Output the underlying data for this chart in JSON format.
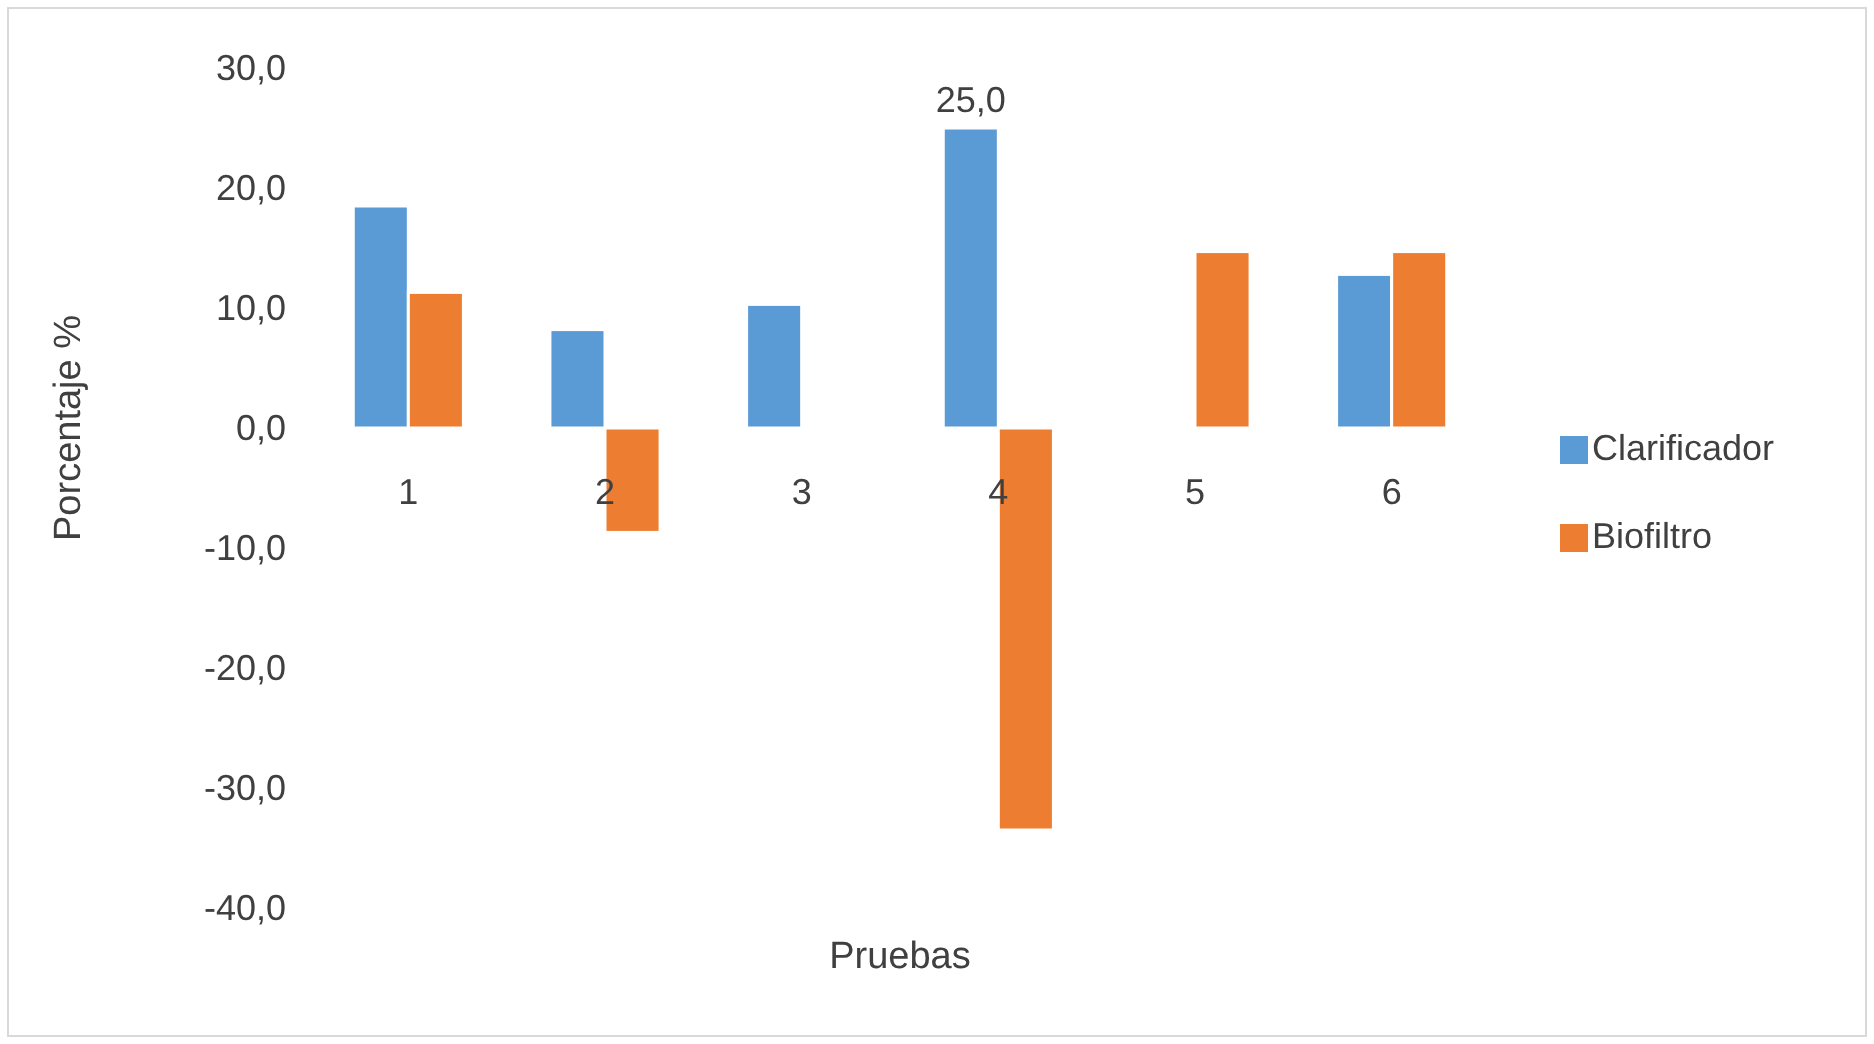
{
  "chart_data": {
    "type": "bar",
    "xlabel": "Pruebas",
    "ylabel": "Porcentaje %",
    "categories": [
      "1",
      "2",
      "3",
      "4",
      "5",
      "6"
    ],
    "series": [
      {
        "name": "Clarificador",
        "color": "#5b9bd5",
        "values": [
          18.5,
          8.2,
          10.3,
          25.0,
          null,
          12.8
        ],
        "value_labels": [
          null,
          null,
          null,
          "25,0",
          null,
          null
        ]
      },
      {
        "name": "Biofiltro",
        "color": "#ed7d31",
        "values": [
          11.3,
          -8.7,
          null,
          -33.5,
          14.7,
          14.7
        ]
      }
    ],
    "ylim": [
      -40,
      30
    ],
    "yticks": [
      {
        "value": -40,
        "label": "-40,0"
      },
      {
        "value": -30,
        "label": "-30,0"
      },
      {
        "value": -20,
        "label": "-20,0"
      },
      {
        "value": -10,
        "label": "-10,0"
      },
      {
        "value": 0,
        "label": "0,0"
      },
      {
        "value": 10,
        "label": "10,0"
      },
      {
        "value": 20,
        "label": "20,0"
      },
      {
        "value": 30,
        "label": "30,0"
      }
    ],
    "legend": "right"
  }
}
